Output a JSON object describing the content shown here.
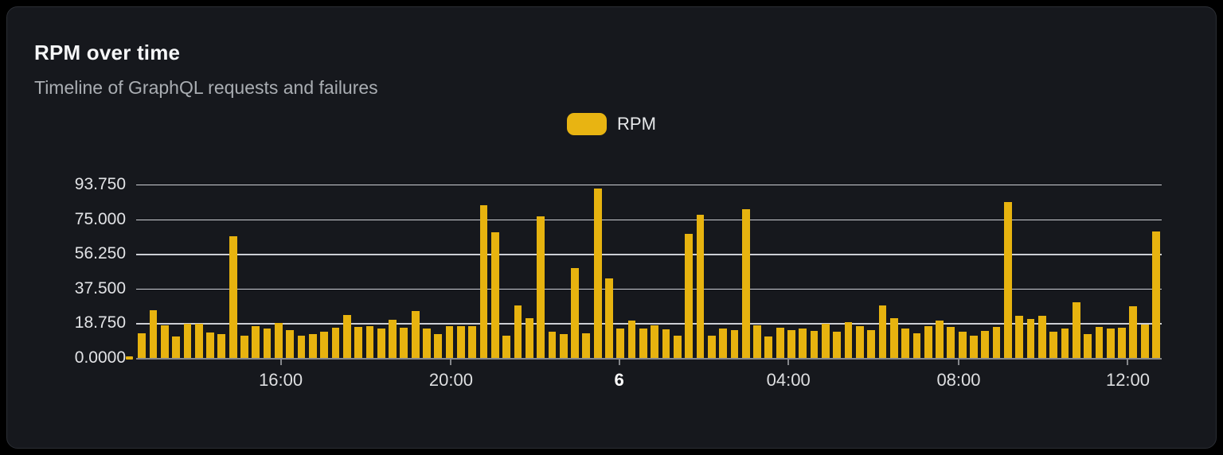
{
  "header": {
    "title": "RPM over time",
    "subtitle": "Timeline of GraphQL requests and failures"
  },
  "legend": {
    "items": [
      {
        "label": "RPM",
        "color": "#E8B412"
      }
    ]
  },
  "chart_data": {
    "type": "bar",
    "title": "RPM over time",
    "subtitle": "Timeline of GraphQL requests and failures",
    "legend_position": "top-center",
    "grid": true,
    "y_axis": {
      "min": 0,
      "max": 93.75,
      "tick_labels": [
        "93.750",
        "75.000",
        "56.250",
        "37.500",
        "18.750",
        "0.0000"
      ]
    },
    "x_axis": {
      "ticks": [
        {
          "label": "16:00",
          "pos_pct": 14.1,
          "bold": false
        },
        {
          "label": "20:00",
          "pos_pct": 30.7,
          "bold": false
        },
        {
          "label": "6",
          "pos_pct": 47.1,
          "bold": true
        },
        {
          "label": "04:00",
          "pos_pct": 63.6,
          "bold": false
        },
        {
          "label": "08:00",
          "pos_pct": 80.2,
          "bold": false
        },
        {
          "label": "12:00",
          "pos_pct": 96.7,
          "bold": false
        }
      ]
    },
    "series": [
      {
        "name": "RPM",
        "color": "#E7B30F",
        "values": [
          13.2,
          26.0,
          17.5,
          11.5,
          18.4,
          18.4,
          13.6,
          12.8,
          65.6,
          12.1,
          17.0,
          15.9,
          19.1,
          14.9,
          12.0,
          12.8,
          14.2,
          16.3,
          23.2,
          16.8,
          17.4,
          16.0,
          20.6,
          16.4,
          25.4,
          16.0,
          12.8,
          17.1,
          17.1,
          17.4,
          82.5,
          67.8,
          11.9,
          28.6,
          21.7,
          76.4,
          14.0,
          13.1,
          48.7,
          13.3,
          91.8,
          43.1,
          15.8,
          20.2,
          15.9,
          17.6,
          15.3,
          12.0,
          67.3,
          77.6,
          12.0,
          15.8,
          14.9,
          80.3,
          17.5,
          11.8,
          16.5,
          14.9,
          15.8,
          14.5,
          18.3,
          14.1,
          19.2,
          17.4,
          14.9,
          28.4,
          21.5,
          15.9,
          13.2,
          17.1,
          20.2,
          16.7,
          14.1,
          12.0,
          14.5,
          16.7,
          84.3,
          22.9,
          20.9,
          22.9,
          14.0,
          15.9,
          30.1,
          13.0,
          16.7,
          15.9,
          16.3,
          28.0,
          18.0,
          68.2
        ]
      }
    ]
  }
}
